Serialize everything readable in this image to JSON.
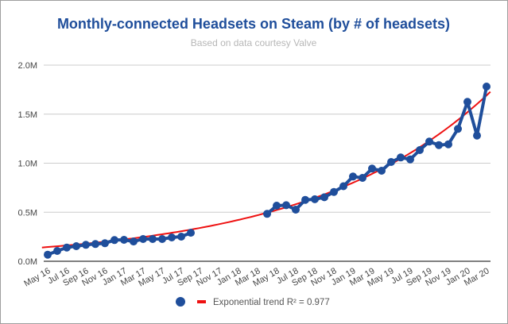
{
  "chart_data": {
    "type": "line",
    "title": "Monthly-connected Headsets on Steam (by # of headsets)",
    "subtitle": "Based on data courtesy Valve",
    "xlabel": "",
    "ylabel": "",
    "ylim": [
      0,
      2.0
    ],
    "y_unit": "M",
    "y_ticks": [
      "0.0M",
      "0.5M",
      "1.0M",
      "1.5M",
      "2.0M"
    ],
    "y_tick_values": [
      0,
      0.5,
      1.0,
      1.5,
      2.0
    ],
    "x_tick_labels": [
      "May 16",
      "Jul 16",
      "Sep 16",
      "Nov 16",
      "Jan 17",
      "Mar 17",
      "May 17",
      "Jul 17",
      "Sep 17",
      "Nov 17",
      "Jan 18",
      "Mar 18",
      "May 18",
      "Jul 18",
      "Sep 18",
      "Nov 18",
      "Jan 19",
      "Mar 19",
      "May 19",
      "Jul 19",
      "Sep 19",
      "Nov 19",
      "Jan 20",
      "Mar 20"
    ],
    "x_range_months": [
      0,
      46
    ],
    "grid": true,
    "legend_position": "bottom",
    "colors": {
      "series": "#1f4e9b",
      "trend": "#ee1111",
      "title": "#1f4e9b",
      "grid": "#cccccc"
    },
    "series": [
      {
        "name": "",
        "segments": [
          {
            "months": [
              0,
              1,
              2,
              3,
              4,
              5,
              6,
              7,
              8,
              9,
              10,
              11,
              12,
              13,
              14,
              15
            ],
            "values": [
              0.067,
              0.105,
              0.14,
              0.154,
              0.168,
              0.176,
              0.184,
              0.216,
              0.219,
              0.202,
              0.227,
              0.227,
              0.227,
              0.243,
              0.251,
              0.291
            ]
          },
          {
            "months": [
              23,
              24,
              25,
              26,
              27,
              28,
              29,
              30,
              31,
              32,
              33,
              34,
              35,
              36,
              37,
              38,
              39,
              40,
              41,
              42,
              43,
              44,
              45,
              46
            ],
            "values": [
              0.483,
              0.567,
              0.572,
              0.526,
              0.626,
              0.632,
              0.653,
              0.707,
              0.765,
              0.864,
              0.85,
              0.945,
              0.923,
              1.012,
              1.058,
              1.039,
              1.134,
              1.22,
              1.185,
              1.193,
              1.35,
              1.625,
              1.282,
              1.781
            ]
          }
        ]
      }
    ],
    "trend": {
      "name": "Exponential trend R² = 0.977",
      "type": "exponential",
      "a": 0.145,
      "b": 0.0534,
      "month_range": [
        -0.6,
        46.4
      ]
    }
  }
}
